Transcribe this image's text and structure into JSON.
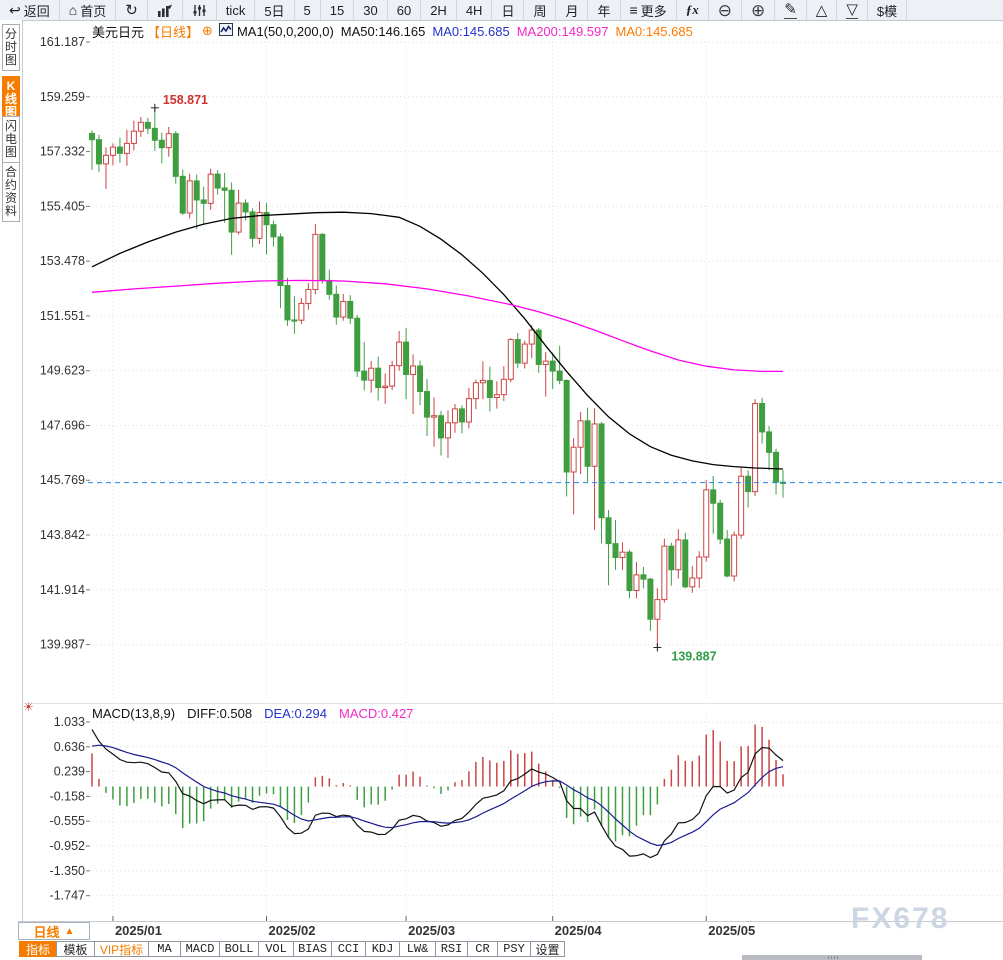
{
  "toolbar": {
    "items": [
      {
        "name": "back",
        "glyph": "↩",
        "label": "返回"
      },
      {
        "name": "home",
        "glyph": "⌂",
        "label": "首页"
      },
      {
        "name": "refresh",
        "glyph": "↻"
      },
      {
        "name": "bar-chart",
        "svg": "bars"
      },
      {
        "name": "equalizer",
        "svg": "sliders"
      },
      {
        "name": "tick",
        "label": "tick"
      },
      {
        "name": "period-5d",
        "label": "5日"
      },
      {
        "name": "period-5",
        "label": "5"
      },
      {
        "name": "period-15",
        "label": "15"
      },
      {
        "name": "period-30",
        "label": "30"
      },
      {
        "name": "period-60",
        "label": "60"
      },
      {
        "name": "period-2h",
        "label": "2H"
      },
      {
        "name": "period-4h",
        "label": "4H"
      },
      {
        "name": "period-day",
        "label": "日"
      },
      {
        "name": "period-week",
        "label": "周"
      },
      {
        "name": "period-month",
        "label": "月"
      },
      {
        "name": "period-year",
        "label": "年"
      },
      {
        "name": "more",
        "glyph": "≡",
        "label": "更多"
      },
      {
        "name": "fx-functions",
        "label": "ƒx"
      },
      {
        "name": "zoom-out",
        "glyph": "⊖"
      },
      {
        "name": "zoom-in",
        "glyph": "⊕"
      },
      {
        "name": "draw",
        "glyph": "✎",
        "underline": true
      },
      {
        "name": "triangle-up",
        "glyph": "△"
      },
      {
        "name": "triangle-down",
        "glyph": "▽",
        "underline": true
      },
      {
        "name": "template",
        "label": "$模"
      }
    ]
  },
  "sidebar": {
    "tabs": [
      {
        "name": "time-chart",
        "label": "分时图",
        "active": false
      },
      {
        "name": "kline-chart",
        "label": "K线图",
        "active": true
      },
      {
        "name": "flash-chart",
        "label": "闪电图",
        "active": false
      },
      {
        "name": "contract-info",
        "label": "合约资料",
        "active": false
      }
    ]
  },
  "header": {
    "symbol": "美元日元",
    "timeframe": "【日线】",
    "plus": "⊕",
    "ma_settings": "MA1(50,0,200,0)",
    "ma50": "MA50:146.165",
    "ma0_blue": "MA0:145.685",
    "ma200": "MA200:149.597",
    "ma0_orange": "MA0:145.685"
  },
  "macd_header": {
    "title": "MACD(13,8,9)",
    "diff": "DIFF:0.508",
    "dea": "DEA:0.294",
    "macd": "MACD:0.427"
  },
  "period_box": {
    "label": "日线",
    "arrow": "▲"
  },
  "indicator_bar": {
    "tabs": [
      {
        "label": "指标",
        "active": true
      },
      {
        "label": "模板"
      },
      {
        "label": "VIP指标",
        "vip": true
      },
      {
        "label": "MA"
      },
      {
        "label": "MACD"
      },
      {
        "label": "BOLL"
      },
      {
        "label": "VOL"
      },
      {
        "label": "BIAS"
      },
      {
        "label": "CCI"
      },
      {
        "label": "KDJ"
      },
      {
        "label": "LW&"
      },
      {
        "label": "RSI"
      },
      {
        "label": "CR"
      },
      {
        "label": "PSY"
      },
      {
        "label": "设置"
      }
    ]
  },
  "watermark": "FX678",
  "chart_data": {
    "type": "candlestick",
    "title": "美元日元 日线",
    "y_ticks": [
      "161.187",
      "159.259",
      "157.332",
      "155.405",
      "153.478",
      "151.551",
      "149.623",
      "147.696",
      "145.769",
      "143.842",
      "141.914",
      "139.987"
    ],
    "current_price": 145.685,
    "annotations": {
      "high": {
        "text": "158.871",
        "index": 9,
        "color": "#cc3333"
      },
      "low": {
        "text": "139.887",
        "index": 81,
        "color": "#2f9e44"
      }
    },
    "months": [
      [
        "2025/01",
        3
      ],
      [
        "2025/02",
        25
      ],
      [
        "2025/03",
        45
      ],
      [
        "2025/04",
        66
      ],
      [
        "2025/05",
        88
      ]
    ],
    "colors": {
      "up": "#cc4444",
      "down": "#3f9e3f",
      "ma50": "#000000",
      "ma200": "#ff00ee",
      "diff": "#111111",
      "dea": "#1b1b8f",
      "price_line": "#1e88e5",
      "grid": "#dcdfe4"
    },
    "candles": [
      [
        "12/27",
        157.97,
        158.08,
        156.69,
        157.75
      ],
      [
        "12/30",
        157.75,
        157.92,
        156.62,
        156.9
      ],
      [
        "12/31",
        156.9,
        157.48,
        156.02,
        157.2
      ],
      [
        "01/02",
        157.2,
        157.62,
        156.85,
        157.49
      ],
      [
        "01/03",
        157.49,
        157.82,
        156.94,
        157.27
      ],
      [
        "01/06",
        157.27,
        158.1,
        156.83,
        157.62
      ],
      [
        "01/07",
        157.62,
        158.42,
        157.37,
        158.05
      ],
      [
        "01/08",
        158.05,
        158.55,
        157.85,
        158.36
      ],
      [
        "01/09",
        158.36,
        158.52,
        157.95,
        158.15
      ],
      [
        "01/10",
        158.15,
        158.871,
        157.35,
        157.73
      ],
      [
        "01/13",
        157.73,
        158.0,
        156.92,
        157.47
      ],
      [
        "01/14",
        157.47,
        158.2,
        157.15,
        157.96
      ],
      [
        "01/15",
        157.96,
        158.05,
        156.2,
        156.46
      ],
      [
        "01/16",
        156.46,
        156.7,
        155.1,
        155.17
      ],
      [
        "01/17",
        155.17,
        156.55,
        154.98,
        156.3
      ],
      [
        "01/20",
        156.3,
        156.52,
        154.6,
        155.63
      ],
      [
        "01/21",
        155.63,
        156.1,
        154.78,
        155.51
      ],
      [
        "01/22",
        155.51,
        156.73,
        155.28,
        156.54
      ],
      [
        "01/23",
        156.54,
        156.68,
        155.82,
        156.05
      ],
      [
        "01/24",
        156.05,
        156.58,
        154.83,
        155.97
      ],
      [
        "01/27",
        155.97,
        156.25,
        153.7,
        154.5
      ],
      [
        "01/28",
        154.5,
        155.99,
        154.42,
        155.52
      ],
      [
        "01/29",
        155.52,
        155.65,
        154.91,
        155.21
      ],
      [
        "01/30",
        155.21,
        155.33,
        153.97,
        154.28
      ],
      [
        "01/31",
        154.28,
        155.58,
        154.08,
        155.19
      ],
      [
        "02/03",
        155.19,
        155.52,
        153.71,
        154.76
      ],
      [
        "02/04",
        154.76,
        154.9,
        153.99,
        154.33
      ],
      [
        "02/05",
        154.33,
        154.45,
        151.82,
        152.62
      ],
      [
        "02/06",
        152.62,
        152.89,
        151.2,
        151.41
      ],
      [
        "02/07",
        151.41,
        152.24,
        150.92,
        151.4
      ],
      [
        "02/10",
        151.4,
        152.18,
        151.26,
        151.99
      ],
      [
        "02/11",
        151.99,
        152.7,
        151.77,
        152.48
      ],
      [
        "02/12",
        152.48,
        154.79,
        152.31,
        154.42
      ],
      [
        "02/13",
        154.42,
        154.46,
        152.69,
        152.8
      ],
      [
        "02/14",
        152.8,
        153.18,
        152.12,
        152.31
      ],
      [
        "02/17",
        152.31,
        152.62,
        151.24,
        151.51
      ],
      [
        "02/18",
        151.51,
        152.32,
        151.38,
        152.06
      ],
      [
        "02/19",
        152.06,
        152.28,
        151.27,
        151.47
      ],
      [
        "02/20",
        151.47,
        151.58,
        149.4,
        149.61
      ],
      [
        "02/21",
        149.61,
        150.63,
        148.93,
        149.29
      ],
      [
        "02/24",
        149.29,
        149.96,
        148.85,
        149.71
      ],
      [
        "02/25",
        149.71,
        150.12,
        148.57,
        149.03
      ],
      [
        "02/26",
        149.03,
        149.52,
        148.46,
        149.08
      ],
      [
        "02/27",
        149.08,
        149.97,
        148.94,
        149.8
      ],
      [
        "02/28",
        149.8,
        151.02,
        149.62,
        150.63
      ],
      [
        "03/03",
        150.63,
        151.12,
        148.62,
        149.49
      ],
      [
        "03/04",
        149.49,
        150.2,
        148.1,
        149.79
      ],
      [
        "03/05",
        149.79,
        149.98,
        148.41,
        148.89
      ],
      [
        "03/06",
        148.89,
        149.33,
        147.33,
        147.99
      ],
      [
        "03/07",
        147.99,
        148.68,
        146.95,
        148.04
      ],
      [
        "03/10",
        148.04,
        148.21,
        146.64,
        147.26
      ],
      [
        "03/11",
        147.26,
        148.23,
        146.55,
        147.79
      ],
      [
        "03/12",
        147.79,
        148.45,
        147.44,
        148.28
      ],
      [
        "03/13",
        148.28,
        148.4,
        147.42,
        147.82
      ],
      [
        "03/14",
        147.82,
        149.02,
        147.59,
        148.64
      ],
      [
        "03/17",
        148.64,
        149.3,
        148.27,
        149.2
      ],
      [
        "03/18",
        149.2,
        149.95,
        148.62,
        149.28
      ],
      [
        "03/19",
        149.28,
        149.77,
        148.19,
        148.68
      ],
      [
        "03/20",
        148.68,
        149.25,
        148.29,
        148.78
      ],
      [
        "03/21",
        148.78,
        149.78,
        148.56,
        149.32
      ],
      [
        "03/24",
        149.32,
        150.77,
        149.22,
        150.72
      ],
      [
        "03/25",
        150.72,
        150.95,
        149.71,
        149.89
      ],
      [
        "03/26",
        149.89,
        150.68,
        149.7,
        150.56
      ],
      [
        "03/27",
        150.56,
        151.23,
        150.06,
        151.05
      ],
      [
        "03/28",
        151.05,
        151.12,
        149.55,
        149.84
      ],
      [
        "03/31",
        149.84,
        150.28,
        148.71,
        149.96
      ],
      [
        "04/01",
        149.96,
        150.26,
        148.98,
        149.61
      ],
      [
        "04/02",
        149.61,
        150.5,
        149.15,
        149.28
      ],
      [
        "04/03",
        149.28,
        149.32,
        145.2,
        146.06
      ],
      [
        "04/04",
        146.06,
        147.25,
        144.57,
        146.93
      ],
      [
        "04/07",
        146.93,
        148.17,
        145.99,
        147.86
      ],
      [
        "04/08",
        147.86,
        148.32,
        145.71,
        146.26
      ],
      [
        "04/09",
        146.26,
        148.3,
        144.02,
        147.75
      ],
      [
        "04/10",
        147.75,
        147.82,
        143.55,
        144.45
      ],
      [
        "04/11",
        144.45,
        144.72,
        142.07,
        143.54
      ],
      [
        "04/14",
        143.54,
        144.37,
        142.62,
        143.05
      ],
      [
        "04/15",
        143.05,
        143.58,
        142.61,
        143.24
      ],
      [
        "04/16",
        143.24,
        143.32,
        141.62,
        141.89
      ],
      [
        "04/17",
        141.89,
        142.89,
        141.61,
        142.44
      ],
      [
        "04/18",
        142.44,
        142.72,
        141.96,
        142.29
      ],
      [
        "04/21",
        142.29,
        142.34,
        140.47,
        140.88
      ],
      [
        "04/22",
        140.88,
        141.97,
        139.887,
        141.57
      ],
      [
        "04/23",
        141.57,
        143.72,
        141.46,
        143.45
      ],
      [
        "04/24",
        143.45,
        143.57,
        142.06,
        142.62
      ],
      [
        "04/25",
        142.62,
        144.05,
        142.31,
        143.67
      ],
      [
        "04/28",
        143.67,
        143.92,
        141.97,
        142.02
      ],
      [
        "04/29",
        142.02,
        142.75,
        141.81,
        142.33
      ],
      [
        "04/30",
        142.33,
        143.27,
        141.98,
        143.07
      ],
      [
        "05/01",
        143.07,
        145.77,
        142.91,
        145.43
      ],
      [
        "05/02",
        145.43,
        145.92,
        143.89,
        144.96
      ],
      [
        "05/05",
        144.96,
        145.08,
        143.52,
        143.7
      ],
      [
        "05/06",
        143.7,
        144.02,
        142.36,
        142.4
      ],
      [
        "05/07",
        142.4,
        143.97,
        142.21,
        143.84
      ],
      [
        "05/08",
        143.84,
        146.2,
        143.71,
        145.91
      ],
      [
        "05/09",
        145.91,
        146.12,
        144.81,
        145.37
      ],
      [
        "05/12",
        145.37,
        148.62,
        145.21,
        148.47
      ],
      [
        "05/13",
        148.47,
        148.67,
        147.06,
        147.47
      ],
      [
        "05/14",
        147.47,
        147.67,
        146.12,
        146.75
      ],
      [
        "05/15",
        146.75,
        146.88,
        145.27,
        145.7
      ],
      [
        "05/16",
        145.7,
        146.13,
        145.16,
        145.685
      ]
    ],
    "ma50_points": [
      [
        0,
        153.28
      ],
      [
        4,
        153.75
      ],
      [
        8,
        154.15
      ],
      [
        12,
        154.5
      ],
      [
        16,
        154.78
      ],
      [
        20,
        154.98
      ],
      [
        24,
        155.08
      ],
      [
        28,
        155.13
      ],
      [
        32,
        155.18
      ],
      [
        36,
        155.2
      ],
      [
        40,
        155.15
      ],
      [
        44,
        155.02
      ],
      [
        47,
        154.7
      ],
      [
        50,
        154.25
      ],
      [
        53,
        153.7
      ],
      [
        56,
        153.05
      ],
      [
        59,
        152.3
      ],
      [
        62,
        151.45
      ],
      [
        65,
        150.5
      ],
      [
        68,
        149.6
      ],
      [
        71,
        148.75
      ],
      [
        74,
        148.0
      ],
      [
        77,
        147.4
      ],
      [
        80,
        146.95
      ],
      [
        83,
        146.65
      ],
      [
        86,
        146.45
      ],
      [
        89,
        146.32
      ],
      [
        92,
        146.25
      ],
      [
        95,
        146.2
      ],
      [
        99,
        146.165
      ]
    ],
    "ma200_points": [
      [
        0,
        152.38
      ],
      [
        6,
        152.5
      ],
      [
        12,
        152.6
      ],
      [
        18,
        152.7
      ],
      [
        24,
        152.78
      ],
      [
        30,
        152.8
      ],
      [
        36,
        152.78
      ],
      [
        42,
        152.68
      ],
      [
        48,
        152.5
      ],
      [
        54,
        152.25
      ],
      [
        60,
        151.95
      ],
      [
        64,
        151.7
      ],
      [
        68,
        151.4
      ],
      [
        72,
        151.05
      ],
      [
        76,
        150.68
      ],
      [
        80,
        150.32
      ],
      [
        84,
        150.0
      ],
      [
        88,
        149.78
      ],
      [
        92,
        149.65
      ],
      [
        96,
        149.6
      ],
      [
        99,
        149.597
      ]
    ],
    "macd": {
      "params": {
        "slow": 13,
        "fast": 8,
        "signal": 9
      },
      "y_ticks": [
        "1.033",
        "0.636",
        "0.239",
        "-0.158",
        "-0.555",
        "-0.952",
        "-1.350",
        "-1.747"
      ],
      "seed": {
        "fast": 157.6,
        "slow": 156.55,
        "dea": 0.58
      },
      "diff_last": 0.508,
      "dea_last": 0.294,
      "macd_last": 0.427
    }
  }
}
